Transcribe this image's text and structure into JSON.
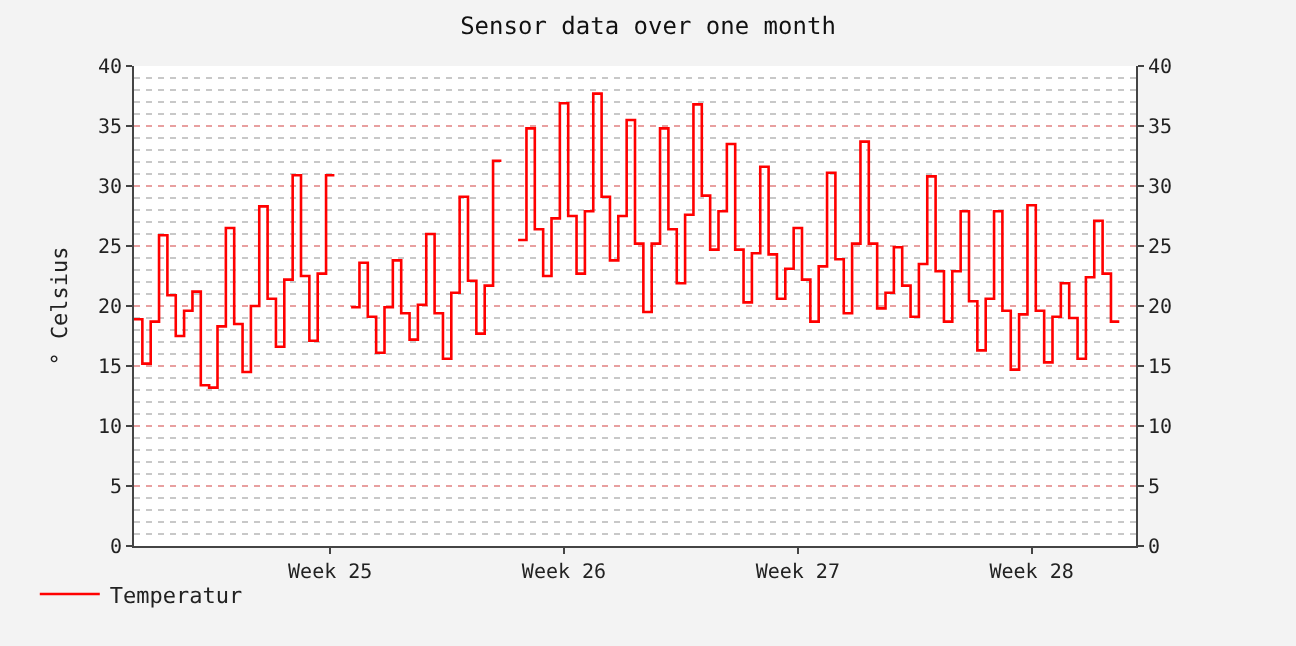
{
  "chart_data": {
    "type": "step",
    "title": "Sensor data over one month",
    "ylabel": "° Celsius",
    "categories": [
      null,
      null,
      null,
      null,
      null,
      null,
      null,
      null,
      null,
      null,
      null,
      null,
      null,
      null,
      null,
      null,
      null,
      null,
      null,
      null,
      null,
      null,
      null,
      "Week 25",
      null,
      null,
      null,
      null,
      null,
      null,
      null,
      null,
      null,
      null,
      null,
      null,
      null,
      null,
      null,
      null,
      null,
      null,
      null,
      null,
      null,
      null,
      null,
      null,
      null,
      null,
      null,
      "Week 26",
      null,
      null,
      null,
      null,
      null,
      null,
      null,
      null,
      null,
      null,
      null,
      null,
      null,
      null,
      null,
      null,
      null,
      null,
      null,
      null,
      null,
      null,
      null,
      null,
      null,
      null,
      null,
      "Week 27",
      null,
      null,
      null,
      null,
      null,
      null,
      null,
      null,
      null,
      null,
      null,
      null,
      null,
      null,
      null,
      null,
      null,
      null,
      null,
      null,
      null,
      null,
      null,
      null,
      null,
      null,
      null,
      "Week 28",
      null,
      null,
      null,
      null,
      null,
      null,
      null,
      null,
      null,
      null,
      null,
      null
    ],
    "series": [
      {
        "name": "Temperatur",
        "color": "#ff0000",
        "values": [
          18.9,
          15.2,
          18.7,
          25.9,
          20.9,
          17.5,
          19.6,
          21.2,
          13.4,
          13.2,
          18.3,
          26.5,
          18.5,
          14.5,
          20.0,
          28.3,
          20.6,
          16.6,
          22.2,
          30.9,
          22.5,
          17.1,
          22.7,
          30.9,
          null,
          null,
          19.9,
          23.6,
          19.1,
          16.1,
          19.9,
          23.8,
          19.4,
          17.2,
          20.1,
          26.0,
          19.4,
          15.6,
          21.1,
          29.1,
          22.1,
          17.7,
          21.7,
          32.1,
          null,
          null,
          25.5,
          34.8,
          26.4,
          22.5,
          27.3,
          36.9,
          27.5,
          22.7,
          27.9,
          37.7,
          29.1,
          23.8,
          27.5,
          35.5,
          25.2,
          19.5,
          25.2,
          34.8,
          26.4,
          21.9,
          27.6,
          36.8,
          29.2,
          24.7,
          27.9,
          33.5,
          24.7,
          20.3,
          24.4,
          31.6,
          24.3,
          20.6,
          23.1,
          26.5,
          22.2,
          18.7,
          23.3,
          31.1,
          23.9,
          19.4,
          25.2,
          33.7,
          25.2,
          19.8,
          21.1,
          24.9,
          21.7,
          19.1,
          23.5,
          30.8,
          22.9,
          18.7,
          22.9,
          27.9,
          20.4,
          16.3,
          20.6,
          27.9,
          19.6,
          14.7,
          19.3,
          28.4,
          19.6,
          15.3,
          19.1,
          21.9,
          19.0,
          15.6,
          22.4,
          27.1,
          22.7,
          18.7,
          null,
          null
        ]
      }
    ],
    "ylim": [
      0,
      40
    ],
    "yticks": [
      0,
      {
        "value": 1,
        "label": null
      },
      {
        "value": 2,
        "label": null
      },
      {
        "value": 3,
        "label": null
      },
      {
        "value": 4,
        "label": null
      },
      5,
      {
        "value": 6,
        "label": null
      },
      {
        "value": 7,
        "label": null
      },
      {
        "value": 8,
        "label": null
      },
      {
        "value": 9,
        "label": null
      },
      10,
      {
        "value": 11,
        "label": null
      },
      {
        "value": 12,
        "label": null
      },
      {
        "value": 13,
        "label": null
      },
      {
        "value": 14,
        "label": null
      },
      15,
      {
        "value": 16,
        "label": null
      },
      {
        "value": 17,
        "label": null
      },
      {
        "value": 18,
        "label": null
      },
      {
        "value": 19,
        "label": null
      },
      20,
      {
        "value": 21,
        "label": null
      },
      {
        "value": 22,
        "label": null
      },
      {
        "value": 23,
        "label": null
      },
      {
        "value": 24,
        "label": null
      },
      25,
      {
        "value": 26,
        "label": null
      },
      {
        "value": 27,
        "label": null
      },
      {
        "value": 28,
        "label": null
      },
      {
        "value": 29,
        "label": null
      },
      30,
      {
        "value": 31,
        "label": null
      },
      {
        "value": 32,
        "label": null
      },
      {
        "value": 33,
        "label": null
      },
      {
        "value": 34,
        "label": null
      },
      35,
      {
        "value": 36,
        "label": null
      },
      {
        "value": 37,
        "label": null
      },
      {
        "value": 38,
        "label": null
      },
      {
        "value": 39,
        "label": null
      },
      40
    ],
    "y2lim": [
      0,
      40
    ],
    "y2ticks": [
      0,
      5,
      10,
      15,
      20,
      25,
      30,
      35,
      40
    ],
    "grid": "y",
    "legend": "bottom left",
    "line_style": "solid",
    "marker": "none"
  }
}
